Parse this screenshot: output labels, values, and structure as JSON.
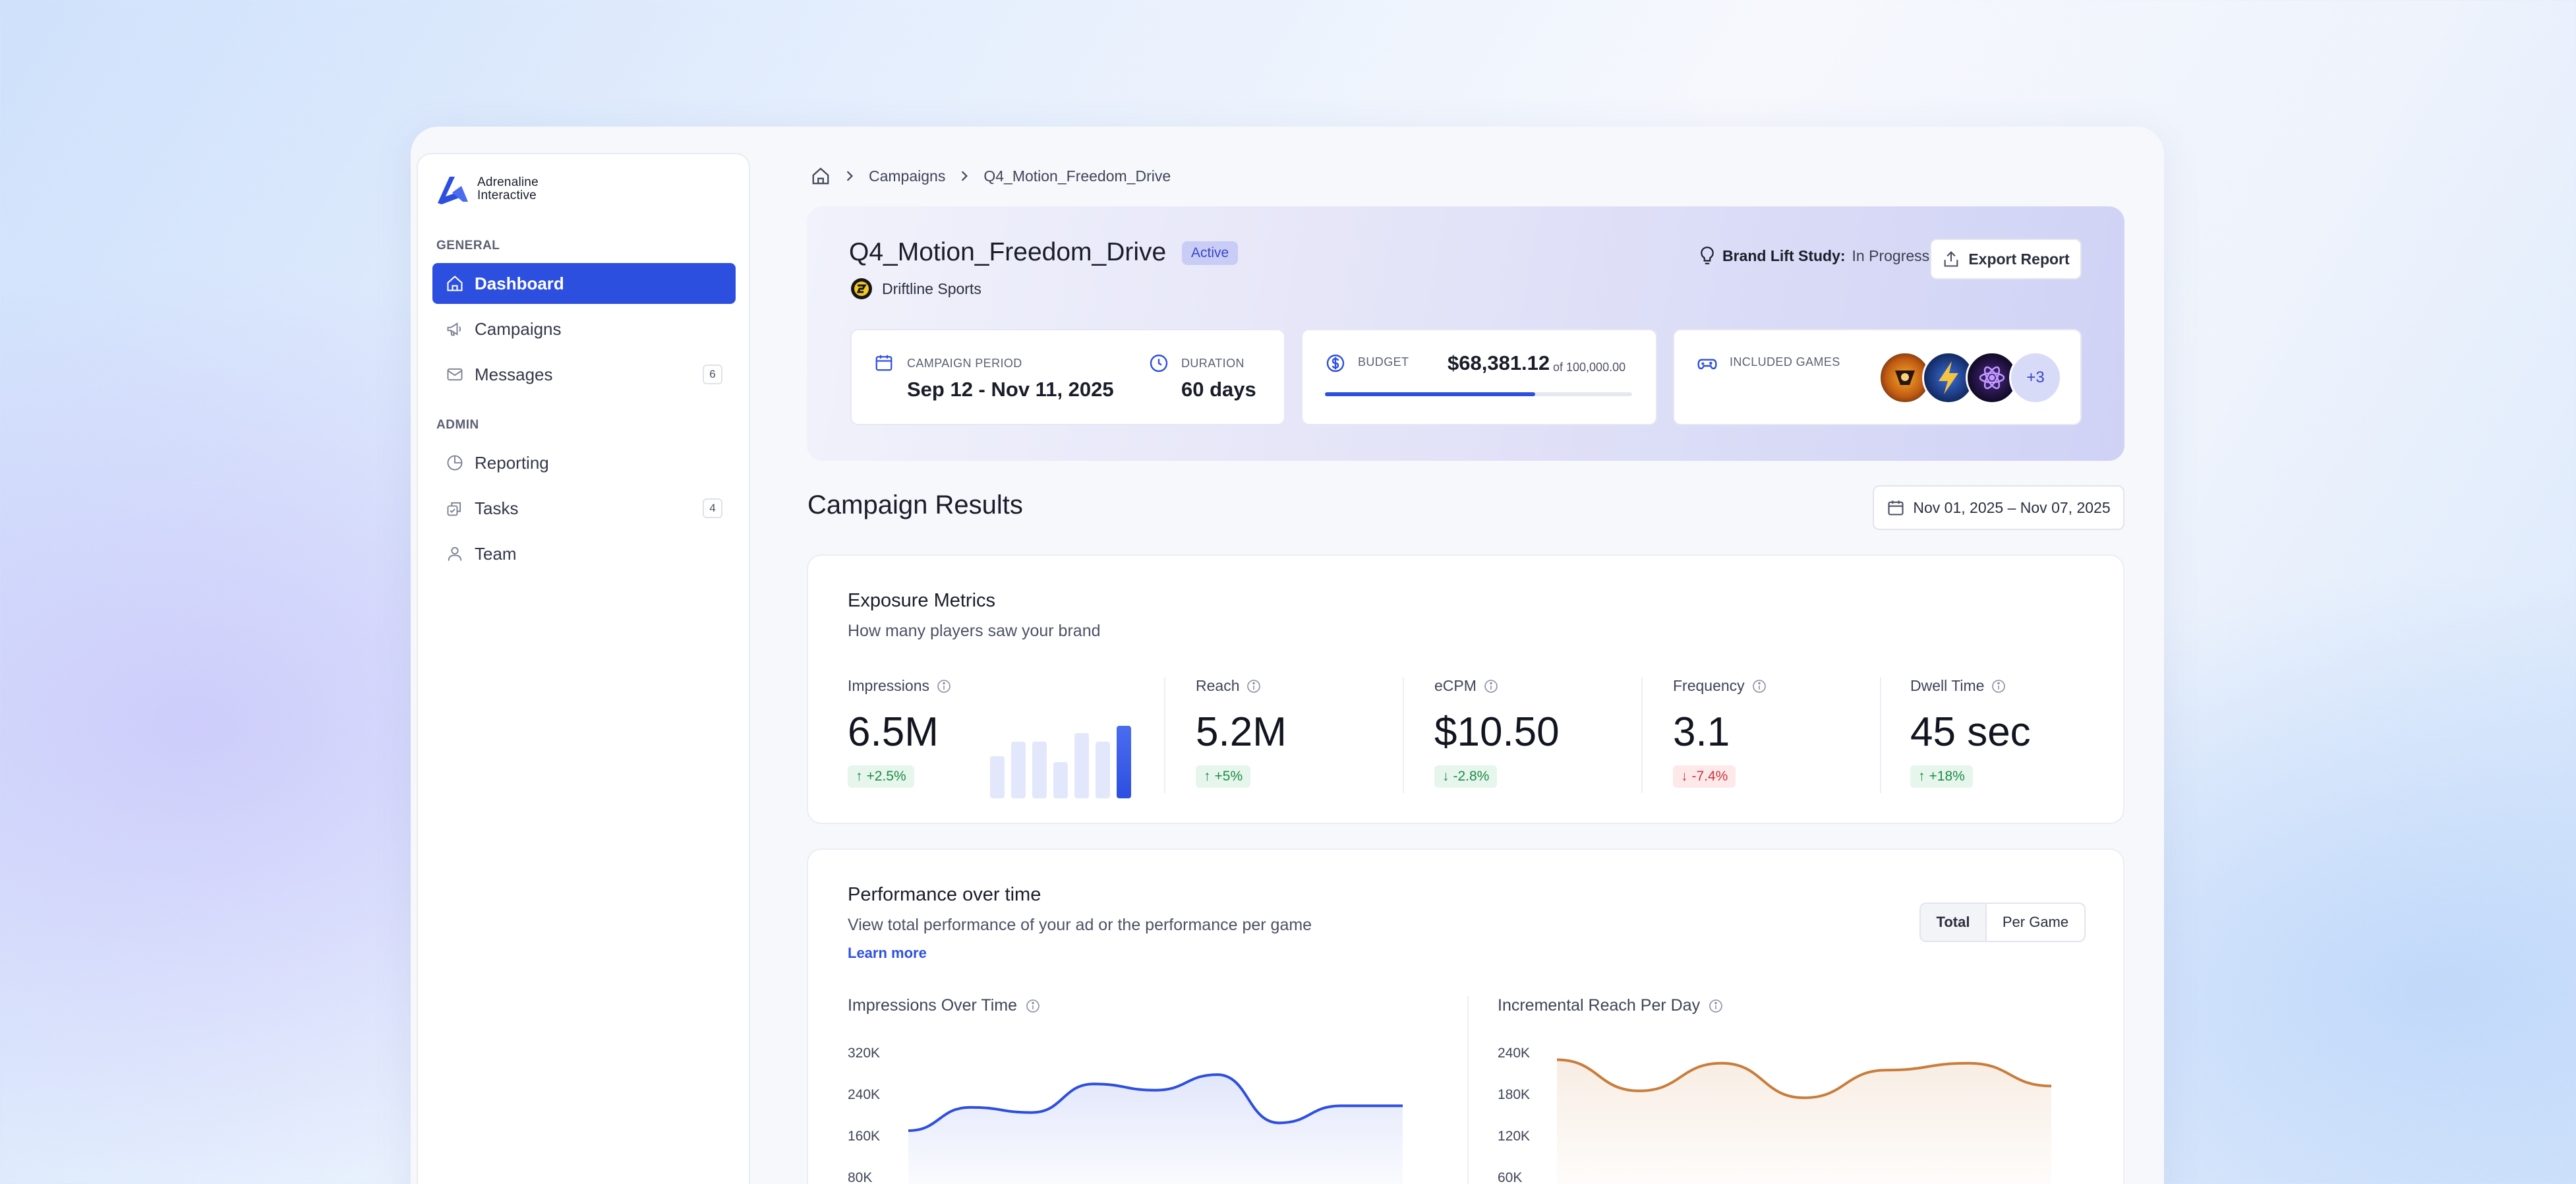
{
  "brand": {
    "line1": "Adrenaline",
    "line2": "Interactive"
  },
  "sidebar": {
    "general_label": "GENERAL",
    "admin_label": "ADMIN",
    "items": [
      {
        "label": "Dashboard",
        "icon": "home-icon",
        "active": true
      },
      {
        "label": "Campaigns",
        "icon": "megaphone-icon"
      },
      {
        "label": "Messages",
        "icon": "mail-icon",
        "badge": "6"
      },
      {
        "label": "Reporting",
        "icon": "pie-chart-icon"
      },
      {
        "label": "Tasks",
        "icon": "tasks-icon",
        "badge": "4"
      },
      {
        "label": "Team",
        "icon": "user-icon"
      }
    ]
  },
  "breadcrumb": {
    "items": [
      "Campaigns",
      "Q4_Motion_Freedom_Drive"
    ]
  },
  "campaign": {
    "title": "Q4_Motion_Freedom_Drive",
    "status": "Active",
    "advertiser": "Driftline Sports",
    "brand_lift_label": "Brand Lift Study:",
    "brand_lift_value": "In Progress",
    "export_label": "Export Report",
    "period_label": "CAMPAIGN PERIOD",
    "period_value": "Sep 12 - Nov 11, 2025",
    "duration_label": "DURATION",
    "duration_value": "60 days",
    "budget_label": "BUDGET",
    "budget_spent": "$68,381.12",
    "budget_total": "of 100,000.00",
    "budget_fraction": 0.684,
    "games_label": "INCLUDED GAMES",
    "games_more": "+3"
  },
  "results": {
    "title": "Campaign Results",
    "date_range": "Nov 01, 2025 – Nov 07, 2025"
  },
  "exposure": {
    "title": "Exposure Metrics",
    "subtitle": "How many players saw your brand",
    "metrics": [
      {
        "label": "Impressions",
        "value": "6.5M",
        "delta": "+2.5%",
        "dir": "up"
      },
      {
        "label": "Reach",
        "value": "5.2M",
        "delta": "+5%",
        "dir": "up"
      },
      {
        "label": "eCPM",
        "value": "$10.50",
        "delta": "-2.8%",
        "dir": "up"
      },
      {
        "label": "Frequency",
        "value": "3.1",
        "delta": "-7.4%",
        "dir": "down"
      },
      {
        "label": "Dwell Time",
        "value": "45 sec",
        "delta": "+18%",
        "dir": "up"
      }
    ],
    "sparkbars": [
      0.58,
      0.78,
      0.78,
      0.5,
      0.9,
      0.78,
      1.0
    ]
  },
  "performance": {
    "title": "Performance over time",
    "subtitle": "View total performance of your ad or the performance per game",
    "learn_more": "Learn more",
    "toggle": {
      "total": "Total",
      "per_game": "Per Game"
    },
    "chart1_title": "Impressions Over Time",
    "chart2_title": "Incremental Reach Per Day"
  },
  "chart_data": [
    {
      "type": "area",
      "title": "Impressions Over Time",
      "yticks": [
        "320K",
        "240K",
        "160K",
        "80K"
      ],
      "ylim": [
        80000,
        320000
      ],
      "color": "#2d4fe0",
      "values": [
        170000,
        215000,
        205000,
        260000,
        248000,
        278000,
        185000,
        218000,
        218000
      ]
    },
    {
      "type": "area",
      "title": "Incremental Reach Per Day",
      "yticks": [
        "240K",
        "180K",
        "120K",
        "60K"
      ],
      "ylim": [
        60000,
        240000
      ],
      "color": "#c97d3b",
      "values": [
        230000,
        185000,
        225000,
        175000,
        215000,
        225000,
        192000
      ]
    }
  ]
}
